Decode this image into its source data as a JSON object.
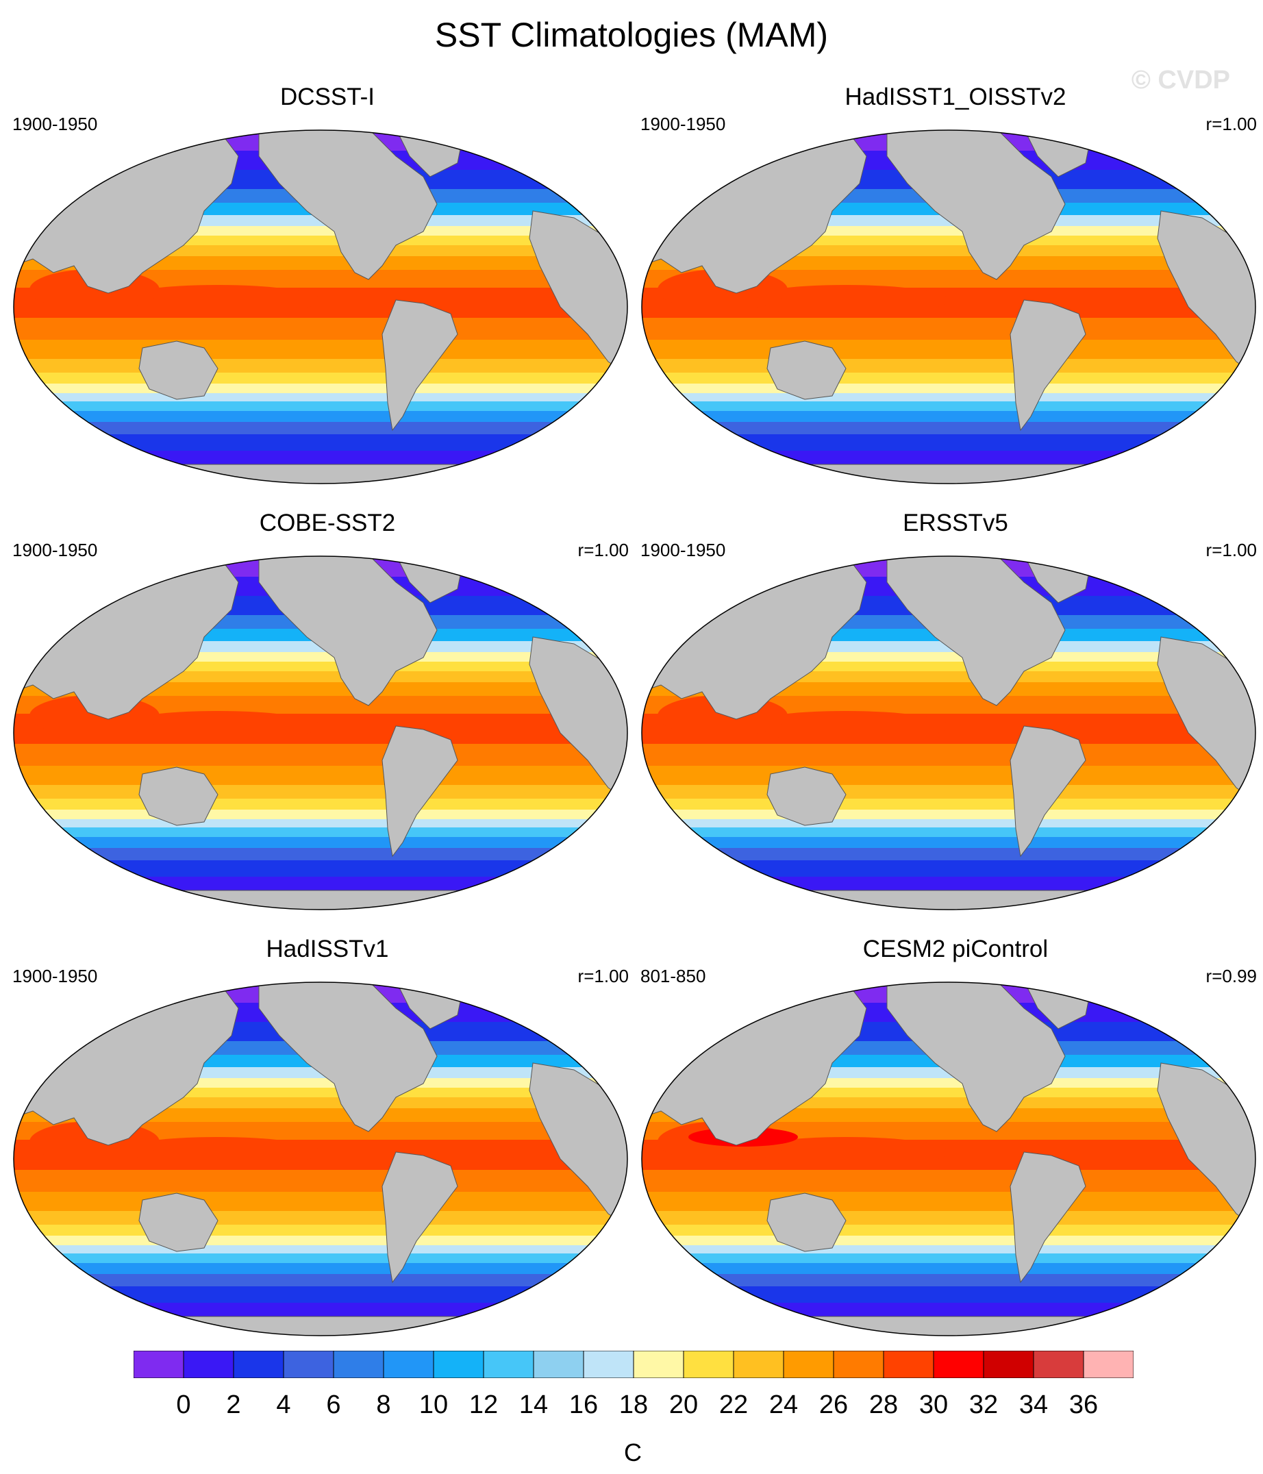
{
  "title": "SST Climatologies (MAM)",
  "watermark": "© CVDP",
  "panels": [
    {
      "title": "DCSST-I",
      "period": "1900-1950",
      "corr": ""
    },
    {
      "title": "HadISST1_OISSTv2",
      "period": "1900-1950",
      "corr": "r=1.00"
    },
    {
      "title": "COBE-SST2",
      "period": "1900-1950",
      "corr": "r=1.00"
    },
    {
      "title": "ERSSTv5",
      "period": "1900-1950",
      "corr": "r=1.00"
    },
    {
      "title": "HadISSTv1",
      "period": "1900-1950",
      "corr": "r=1.00"
    },
    {
      "title": "CESM2 piControl",
      "period": "801-850",
      "corr": "r=0.99"
    }
  ],
  "colorbar": {
    "units": "C",
    "labels": [
      "0",
      "2",
      "4",
      "6",
      "8",
      "10",
      "12",
      "14",
      "16",
      "18",
      "20",
      "22",
      "24",
      "26",
      "28",
      "30",
      "32",
      "34",
      "36"
    ],
    "colors": [
      "#7f2bf0",
      "#3a18f5",
      "#1a36ea",
      "#3d63e0",
      "#2f7ee8",
      "#2196f7",
      "#14b2f8",
      "#46c6f8",
      "#8ed0f0",
      "#bfe4f8",
      "#fff8a6",
      "#ffe040",
      "#ffc021",
      "#ff9b00",
      "#ff7b00",
      "#ff4200",
      "#ff0000",
      "#d00000",
      "#d83c3c",
      "#ffb3b3"
    ],
    "land_color": "#c0c0c0"
  }
}
